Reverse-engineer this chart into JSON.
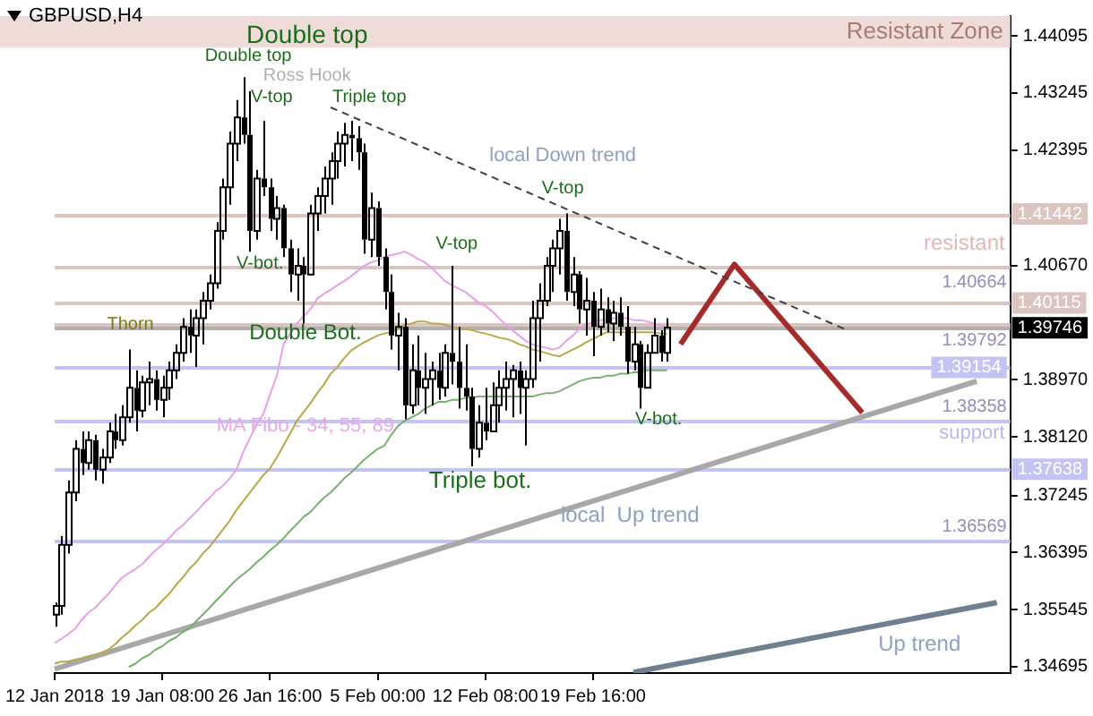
{
  "chart_data": {
    "type": "candlestick",
    "title": "GBPUSD,H4",
    "color": "#000000",
    "categories": [
      "12 Jan 2018",
      null,
      null,
      null,
      null,
      null,
      null,
      null,
      null,
      null,
      null,
      null,
      null,
      null,
      null,
      null,
      "19 Jan 08:00",
      null,
      null,
      null,
      null,
      null,
      null,
      null,
      null,
      null,
      null,
      null,
      null,
      null,
      null,
      null,
      "26 Jan 16:00",
      null,
      null,
      null,
      null,
      null,
      null,
      null,
      null,
      null,
      null,
      null,
      null,
      null,
      null,
      null,
      "5 Feb 00:00",
      null,
      null,
      null,
      null,
      null,
      null,
      null,
      null,
      null,
      null,
      null,
      null,
      null,
      null,
      null,
      "12 Feb 08:00",
      null,
      null,
      null,
      null,
      null,
      null,
      null,
      null,
      null,
      null,
      null,
      null,
      null,
      null,
      null,
      "19 Feb 16:00",
      null,
      null,
      null,
      null,
      null,
      null,
      null,
      null,
      null,
      null,
      null,
      null,
      null,
      null,
      null,
      null,
      null,
      null,
      null,
      null,
      null,
      null,
      null,
      null,
      null,
      null,
      null,
      null,
      null,
      null,
      null,
      null,
      null,
      null,
      null,
      null,
      null,
      null,
      null,
      null,
      null,
      null,
      null,
      null,
      null,
      null,
      null,
      null,
      null,
      null,
      null,
      null,
      null,
      null,
      null,
      null,
      null,
      null,
      null,
      null,
      null,
      null
    ],
    "ohlc": [
      [
        1.3547,
        1.3565,
        1.3529,
        1.356
      ],
      [
        1.356,
        1.3664,
        1.3547,
        1.3651
      ],
      [
        1.3651,
        1.3747,
        1.3638,
        1.3729
      ],
      [
        1.3729,
        1.3807,
        1.3716,
        1.3794
      ],
      [
        1.3794,
        1.382,
        1.3755,
        1.3773
      ],
      [
        1.3773,
        1.382,
        1.3763,
        1.3807
      ],
      [
        1.3807,
        1.3815,
        1.3747,
        1.3763
      ],
      [
        1.3763,
        1.3794,
        1.3742,
        1.3781
      ],
      [
        1.3781,
        1.3833,
        1.3773,
        1.382
      ],
      [
        1.382,
        1.3846,
        1.3794,
        1.3807
      ],
      [
        1.3807,
        1.3859,
        1.3799,
        1.3841
      ],
      [
        1.3841,
        1.3942,
        1.3833,
        1.3885
      ],
      [
        1.3885,
        1.3911,
        1.382,
        1.3851
      ],
      [
        1.3851,
        1.3903,
        1.3841,
        1.3893
      ],
      [
        1.3893,
        1.3924,
        1.3859,
        1.3898
      ],
      [
        1.3898,
        1.3911,
        1.3851,
        1.3867
      ],
      [
        1.3867,
        1.3903,
        1.3841,
        1.3885
      ],
      [
        1.3885,
        1.3924,
        1.3867,
        1.3911
      ],
      [
        1.3911,
        1.395,
        1.3898,
        1.3937
      ],
      [
        1.3937,
        1.3989,
        1.3924,
        1.3976
      ],
      [
        1.3976,
        1.4002,
        1.3937,
        1.3963
      ],
      [
        1.3963,
        1.4002,
        1.3916,
        1.3989
      ],
      [
        1.3989,
        1.4028,
        1.395,
        1.4015
      ],
      [
        1.4015,
        1.4054,
        1.4002,
        1.4041
      ],
      [
        1.4041,
        1.4132,
        1.4033,
        1.4119
      ],
      [
        1.4119,
        1.4197,
        1.4106,
        1.4184
      ],
      [
        1.4184,
        1.4267,
        1.4158,
        1.4249
      ],
      [
        1.4249,
        1.4314,
        1.4223,
        1.4288
      ],
      [
        1.4288,
        1.4348,
        1.4249,
        1.4262
      ],
      [
        1.4262,
        1.4327,
        1.4088,
        1.4119
      ],
      [
        1.4119,
        1.421,
        1.4106,
        1.4197
      ],
      [
        1.4197,
        1.4283,
        1.4171,
        1.4184
      ],
      [
        1.4184,
        1.4197,
        1.4119,
        1.4137
      ],
      [
        1.4137,
        1.4171,
        1.4106,
        1.4153
      ],
      [
        1.4153,
        1.4158,
        1.408,
        1.4093
      ],
      [
        1.4093,
        1.4106,
        1.4028,
        1.4054
      ],
      [
        1.4054,
        1.4093,
        1.4015,
        1.4067
      ],
      [
        1.4067,
        1.408,
        1.3981,
        1.4054
      ],
      [
        1.4054,
        1.4158,
        1.4054,
        1.4145
      ],
      [
        1.4145,
        1.4184,
        1.4119,
        1.4171
      ],
      [
        1.4171,
        1.4215,
        1.4145,
        1.4197
      ],
      [
        1.4197,
        1.4236,
        1.4158,
        1.4223
      ],
      [
        1.4223,
        1.4267,
        1.4197,
        1.4249
      ],
      [
        1.4249,
        1.428,
        1.4215,
        1.4262
      ],
      [
        1.4262,
        1.4283,
        1.4223,
        1.4257
      ],
      [
        1.4257,
        1.4275,
        1.421,
        1.4236
      ],
      [
        1.4236,
        1.4249,
        1.4085,
        1.4106
      ],
      [
        1.4106,
        1.4176,
        1.408,
        1.4153
      ],
      [
        1.4153,
        1.4163,
        1.4067,
        1.408
      ],
      [
        1.408,
        1.4093,
        1.4002,
        1.4028
      ],
      [
        1.4028,
        1.4054,
        1.3942,
        1.3963
      ],
      [
        1.3963,
        1.3997,
        1.3911,
        1.3976
      ],
      [
        1.3976,
        1.3989,
        1.3838,
        1.3859
      ],
      [
        1.3859,
        1.395,
        1.3846,
        1.3911
      ],
      [
        1.3911,
        1.3963,
        1.3859,
        1.3885
      ],
      [
        1.3885,
        1.3937,
        1.3846,
        1.3898
      ],
      [
        1.3898,
        1.3924,
        1.3859,
        1.3911
      ],
      [
        1.3911,
        1.3937,
        1.3867,
        1.3885
      ],
      [
        1.3885,
        1.395,
        1.3872,
        1.3937
      ],
      [
        1.3937,
        1.4067,
        1.389,
        1.3924
      ],
      [
        1.3924,
        1.3976,
        1.3854,
        1.3885
      ],
      [
        1.3885,
        1.395,
        1.3851,
        1.3872
      ],
      [
        1.3872,
        1.3885,
        1.3768,
        1.3794
      ],
      [
        1.3794,
        1.3859,
        1.3781,
        1.3833
      ],
      [
        1.3833,
        1.3885,
        1.3807,
        1.382
      ],
      [
        1.382,
        1.3893,
        1.382,
        1.3859
      ],
      [
        1.3859,
        1.3911,
        1.3833,
        1.3885
      ],
      [
        1.3885,
        1.3924,
        1.3851,
        1.3898
      ],
      [
        1.3898,
        1.3919,
        1.3841,
        1.3911
      ],
      [
        1.3911,
        1.3924,
        1.3846,
        1.3885
      ],
      [
        1.3885,
        1.3911,
        1.3799,
        1.3898
      ],
      [
        1.3898,
        1.4015,
        1.3885,
        1.3989
      ],
      [
        1.3989,
        1.4041,
        1.3924,
        1.4015
      ],
      [
        1.4015,
        1.408,
        1.4007,
        1.4067
      ],
      [
        1.4067,
        1.4106,
        1.4028,
        1.4093
      ],
      [
        1.4093,
        1.4137,
        1.4054,
        1.4119
      ],
      [
        1.4119,
        1.4145,
        1.4015,
        1.4028
      ],
      [
        1.4028,
        1.408,
        1.4007,
        1.4054
      ],
      [
        1.4054,
        1.4059,
        1.3981,
        1.4002
      ],
      [
        1.4002,
        1.4049,
        1.3963,
        1.4015
      ],
      [
        1.4015,
        1.4028,
        1.3932,
        1.3976
      ],
      [
        1.3976,
        1.4033,
        1.3963,
        1.4002
      ],
      [
        1.4002,
        1.402,
        1.3968,
        1.3981
      ],
      [
        1.3981,
        1.4015,
        1.3955,
        1.3997
      ],
      [
        1.3997,
        1.402,
        1.3963,
        1.3976
      ],
      [
        1.3976,
        1.4007,
        1.3906,
        1.3924
      ],
      [
        1.3924,
        1.3976,
        1.3911,
        1.395
      ],
      [
        1.395,
        1.3955,
        1.3854,
        1.3885
      ],
      [
        1.3885,
        1.395,
        1.3885,
        1.3937
      ],
      [
        1.3937,
        1.3989,
        1.3937,
        1.3963
      ],
      [
        1.3963,
        1.3971,
        1.3924,
        1.3937
      ],
      [
        1.3937,
        1.3989,
        1.3924,
        1.3975
      ],
      null,
      null,
      null,
      null,
      null,
      null,
      null,
      null,
      null,
      null,
      null,
      null,
      null,
      null,
      null,
      null,
      null,
      null,
      null,
      null,
      null,
      null,
      null,
      null,
      null,
      null,
      null,
      null,
      null,
      null,
      null,
      null,
      null,
      null,
      null,
      null,
      null,
      null,
      null,
      null,
      null,
      null,
      null,
      null,
      null,
      null,
      null,
      null,
      null,
      null,
      null
    ],
    "series": [
      {
        "type": "line",
        "color": "#e8a0e8",
        "values": [
          1.3505,
          1.3511,
          1.3518,
          1.3526,
          1.3539,
          1.355,
          1.3557,
          1.3568,
          1.3578,
          1.3591,
          1.3602,
          1.3609,
          1.3615,
          1.3622,
          1.3633,
          1.3643,
          1.3651,
          1.3661,
          1.3672,
          1.368,
          1.369,
          1.37,
          1.3711,
          1.3721,
          1.3732,
          1.3739,
          1.375,
          1.3763,
          1.3789,
          1.381,
          1.383,
          1.3846,
          1.3875,
          1.3903,
          1.395,
          1.3966,
          1.3981,
          1.3992,
          1.4002,
          1.4018,
          1.4025,
          1.4031,
          1.4038,
          1.4044,
          1.4051,
          1.4059,
          1.4067,
          1.4072,
          1.4075,
          1.408,
          1.4083,
          1.4085,
          1.4088,
          1.4083,
          1.4077,
          1.4072,
          1.4064,
          1.4054,
          1.4044,
          1.4038,
          1.4033,
          1.4028,
          1.402,
          1.4012,
          1.4007,
          1.3999,
          1.3989,
          1.3979,
          1.3971,
          1.3963,
          1.3955,
          1.395,
          1.3947,
          1.3945,
          1.3942,
          1.3945,
          1.3955,
          1.3963,
          1.3973,
          1.3979,
          1.3984,
          1.3986,
          1.3986,
          1.3989,
          1.3989,
          1.3989,
          1.3986,
          1.3986,
          1.3984,
          1.3981,
          1.3979,
          1.3976,
          null,
          null,
          null,
          null,
          null,
          null,
          null,
          null,
          null,
          null,
          null,
          null,
          null,
          null,
          null,
          null,
          null,
          null,
          null,
          null,
          null,
          null,
          null,
          null,
          null,
          null,
          null,
          null,
          null,
          null,
          null,
          null,
          null,
          null,
          null,
          null,
          null,
          null,
          null,
          null,
          null,
          null,
          null,
          null,
          null,
          null,
          null,
          null,
          null,
          null,
          null
        ]
      },
      {
        "type": "line",
        "color": "#b8a848",
        "values": [
          1.3474,
          1.3477,
          1.3477,
          1.348,
          1.3482,
          1.3485,
          1.3487,
          1.349,
          1.3495,
          1.3503,
          1.3513,
          1.3521,
          1.3531,
          1.3539,
          1.355,
          1.3557,
          1.3568,
          1.3578,
          1.3591,
          1.3602,
          1.3615,
          1.3625,
          1.3638,
          1.3648,
          1.3661,
          1.3674,
          1.3687,
          1.3703,
          1.3716,
          1.3729,
          1.3742,
          1.3755,
          1.3765,
          1.3781,
          1.3799,
          1.3817,
          1.3836,
          1.3849,
          1.3862,
          1.3877,
          1.389,
          1.3906,
          1.3916,
          1.3929,
          1.394,
          1.3947,
          1.3953,
          1.3958,
          1.3963,
          1.3966,
          1.3968,
          1.3973,
          1.3979,
          1.3981,
          1.3984,
          1.3984,
          1.3981,
          1.3981,
          1.3979,
          1.3976,
          1.3973,
          1.3973,
          1.3971,
          1.3968,
          1.3966,
          1.3963,
          1.396,
          1.3958,
          1.3955,
          1.395,
          1.3947,
          1.3942,
          1.394,
          1.3937,
          1.3934,
          1.3932,
          1.3937,
          1.3942,
          1.3947,
          1.3953,
          1.3958,
          1.3963,
          1.3968,
          1.3968,
          1.3968,
          1.3968,
          1.3968,
          1.3968,
          1.3968,
          1.3968,
          1.3966,
          1.3966,
          null,
          null,
          null,
          null,
          null,
          null,
          null,
          null,
          null,
          null,
          null,
          null,
          null,
          null,
          null,
          null,
          null,
          null,
          null,
          null,
          null,
          null,
          null,
          null,
          null,
          null,
          null,
          null,
          null,
          null,
          null,
          null,
          null,
          null,
          null,
          null,
          null,
          null,
          null,
          null,
          null,
          null,
          null,
          null,
          null,
          null,
          null,
          null,
          null,
          null,
          null
        ]
      },
      {
        "type": "line",
        "color": "#78b070",
        "values": [
          null,
          null,
          null,
          null,
          null,
          null,
          null,
          null,
          null,
          null,
          null,
          1.3469,
          1.3474,
          1.3482,
          1.3487,
          1.3495,
          1.35,
          1.3508,
          1.3513,
          1.3521,
          1.3526,
          1.3537,
          1.3547,
          1.3557,
          1.3568,
          1.3578,
          1.3589,
          1.3599,
          1.3607,
          1.3615,
          1.3625,
          1.3633,
          1.3643,
          1.3651,
          1.3661,
          1.3672,
          1.3682,
          1.3693,
          1.37,
          1.3711,
          1.3721,
          1.3729,
          1.3739,
          1.375,
          1.3758,
          1.3768,
          1.3778,
          1.3786,
          1.3794,
          1.3799,
          1.3815,
          1.3828,
          1.3836,
          1.3841,
          1.3846,
          1.3854,
          1.3859,
          1.3864,
          1.3864,
          1.3867,
          1.3867,
          1.387,
          1.387,
          1.3872,
          1.3872,
          1.3872,
          1.3872,
          1.3872,
          1.3872,
          1.3872,
          1.3872,
          1.3872,
          1.3875,
          1.3877,
          1.3877,
          1.388,
          1.3885,
          1.389,
          1.3895,
          1.3898,
          1.39,
          1.39,
          1.3903,
          1.3903,
          1.3906,
          1.3906,
          1.3908,
          1.3908,
          1.3911,
          1.3911,
          1.3911,
          1.3911,
          null,
          null,
          null,
          null,
          null,
          null,
          null,
          null,
          null,
          null,
          null,
          null,
          null,
          null,
          null,
          null,
          null,
          null,
          null,
          null,
          null,
          null,
          null,
          null,
          null,
          null,
          null,
          null,
          null,
          null,
          null,
          null,
          null,
          null,
          null,
          null,
          null,
          null,
          null,
          null,
          null,
          null,
          null,
          null,
          null,
          null,
          null,
          null,
          null,
          null,
          null
        ]
      },
      {
        "type": "line",
        "color": "#708090",
        "values": [
          null,
          null,
          null,
          null,
          null,
          null,
          null,
          null,
          null,
          null,
          null,
          null,
          null,
          null,
          null,
          null,
          null,
          null,
          null,
          null,
          null,
          null,
          null,
          null,
          null,
          null,
          null,
          null,
          null,
          null,
          null,
          null,
          null,
          null,
          null,
          null,
          null,
          null,
          null,
          null,
          null,
          null,
          null,
          null,
          null,
          null,
          null,
          null,
          null,
          null,
          null,
          null,
          null,
          null,
          null,
          null,
          null,
          null,
          null,
          null,
          null,
          null,
          null,
          null,
          null,
          null,
          null,
          null,
          null,
          null,
          null,
          null,
          null,
          null,
          null,
          null,
          null,
          null,
          null,
          null,
          null,
          null,
          null,
          null,
          null,
          null,
          1.3461,
          null,
          null,
          null,
          null,
          null,
          null,
          null,
          null,
          null,
          null,
          null,
          null,
          null,
          null,
          null,
          null,
          null,
          null,
          null,
          null,
          null,
          null,
          null,
          null,
          null,
          null,
          null,
          null,
          null,
          null,
          null,
          null,
          null,
          null,
          null,
          null,
          null,
          null,
          null,
          null,
          null,
          null,
          null,
          null,
          null,
          null,
          null,
          null,
          null,
          null,
          null,
          null,
          null,
          1.3565,
          null,
          null
        ]
      },
      {
        "type": "line",
        "color": "#a8a8a8",
        "values": [
          1.3466,
          null,
          null,
          null,
          null,
          null,
          null,
          null,
          null,
          null,
          null,
          null,
          null,
          null,
          null,
          null,
          null,
          null,
          null,
          null,
          null,
          null,
          null,
          null,
          null,
          null,
          null,
          null,
          null,
          null,
          null,
          null,
          null,
          null,
          null,
          null,
          null,
          null,
          null,
          null,
          null,
          null,
          null,
          null,
          null,
          null,
          null,
          null,
          null,
          null,
          null,
          null,
          null,
          null,
          null,
          null,
          null,
          null,
          null,
          null,
          null,
          null,
          null,
          null,
          null,
          null,
          null,
          null,
          null,
          null,
          null,
          null,
          null,
          null,
          null,
          null,
          null,
          null,
          null,
          null,
          null,
          null,
          null,
          null,
          null,
          null,
          null,
          null,
          null,
          null,
          null,
          null,
          null,
          null,
          null,
          null,
          null,
          null,
          null,
          null,
          null,
          null,
          null,
          null,
          null,
          null,
          null,
          null,
          null,
          null,
          null,
          null,
          null,
          null,
          null,
          null,
          null,
          null,
          null,
          null,
          null,
          null,
          null,
          null,
          null,
          null,
          null,
          null,
          null,
          null,
          null,
          null,
          null,
          null,
          null,
          null,
          null,
          1.3895,
          null,
          null,
          null,
          null,
          null
        ]
      },
      {
        "type": "line",
        "color": "#404040",
        "line_style": "dashed",
        "values": [
          null,
          null,
          null,
          null,
          null,
          null,
          null,
          null,
          null,
          null,
          null,
          null,
          null,
          null,
          null,
          null,
          null,
          null,
          null,
          null,
          null,
          null,
          null,
          null,
          null,
          null,
          null,
          null,
          null,
          null,
          null,
          null,
          null,
          null,
          null,
          null,
          null,
          null,
          null,
          null,
          null,
          1.4303,
          null,
          null,
          null,
          null,
          null,
          null,
          null,
          null,
          null,
          null,
          null,
          null,
          null,
          null,
          null,
          null,
          null,
          null,
          null,
          null,
          null,
          null,
          null,
          null,
          null,
          null,
          null,
          null,
          null,
          null,
          null,
          null,
          null,
          null,
          null,
          null,
          null,
          null,
          null,
          null,
          null,
          null,
          null,
          null,
          null,
          null,
          null,
          null,
          null,
          null,
          null,
          null,
          null,
          null,
          null,
          null,
          null,
          null,
          null,
          null,
          null,
          null,
          null,
          null,
          null,
          null,
          null,
          null,
          null,
          null,
          null,
          null,
          null,
          null,
          null,
          null,
          1.397,
          null,
          null,
          null,
          null,
          null,
          null,
          null,
          null,
          null,
          null,
          null,
          null,
          null,
          null,
          null,
          null,
          null,
          null,
          null,
          null,
          null,
          null,
          null,
          null
        ]
      },
      {
        "type": "line",
        "color": "#a52a2a",
        "values": [
          null,
          null,
          null,
          null,
          null,
          null,
          null,
          null,
          null,
          null,
          null,
          null,
          null,
          null,
          null,
          null,
          null,
          null,
          null,
          null,
          null,
          null,
          null,
          null,
          null,
          null,
          null,
          null,
          null,
          null,
          null,
          null,
          null,
          null,
          null,
          null,
          null,
          null,
          null,
          null,
          null,
          null,
          null,
          null,
          null,
          null,
          null,
          null,
          null,
          null,
          null,
          null,
          null,
          null,
          null,
          null,
          null,
          null,
          null,
          null,
          null,
          null,
          null,
          null,
          null,
          null,
          null,
          null,
          null,
          null,
          null,
          null,
          null,
          null,
          null,
          null,
          null,
          null,
          null,
          null,
          null,
          null,
          null,
          null,
          null,
          null,
          null,
          null,
          null,
          null,
          null,
          null,
          null,
          1.395,
          null,
          null,
          null,
          null,
          null,
          null,
          null,
          1.4069,
          null,
          null,
          null,
          null,
          null,
          null,
          null,
          null,
          null,
          null,
          null,
          null,
          null,
          null,
          null,
          null,
          null,
          null,
          1.3848,
          null,
          null,
          null,
          null,
          null,
          null,
          null,
          null,
          null,
          null,
          null,
          null,
          null,
          null,
          null,
          null,
          null,
          null,
          null,
          null,
          null,
          null
        ]
      }
    ],
    "ylim": [
      1.346,
      1.4439
    ],
    "yticks": [
      1.44095,
      1.43245,
      1.42395,
      {
        "value": 1.4067,
        "label": "1.40670"
      },
      {
        "value": 1.3897,
        "label": "1.38970"
      },
      {
        "value": 1.3812,
        "label": "1.38120"
      },
      1.37245,
      1.36395,
      1.35545,
      1.34695
    ],
    "ref_lines": [
      {
        "axis": "y",
        "value": 1.41442,
        "label": "1.41442",
        "color": "#dcc4c0"
      },
      {
        "axis": "y",
        "value": 1.40664,
        "label": "1.40664",
        "color": "#dcc4c0"
      },
      {
        "axis": "y",
        "value": 1.40115,
        "label": "1.40115",
        "color": "#dcc4c0"
      },
      {
        "axis": "y",
        "value": 1.39792,
        "label": "1.39792",
        "color": "#dcc4c0"
      },
      {
        "axis": "y",
        "value": 1.39746,
        "label": "1.39746",
        "color": "#b0b0b0"
      },
      {
        "axis": "y",
        "value": 1.39154,
        "label": "1.39154",
        "color": "#c4c4f4"
      },
      {
        "axis": "y",
        "value": 1.38358,
        "label": "1.38358",
        "color": "#c4c4f4"
      },
      {
        "axis": "y",
        "value": 1.37638,
        "label": "1.37638",
        "color": "#c4c4f4"
      },
      {
        "axis": "y",
        "value": 1.36569,
        "label": "1.36569",
        "color": "#c4c4f4"
      }
    ],
    "bands": [
      {
        "axis": "y",
        "from": 1.4392,
        "to": 1.4439,
        "label": "Resistant Zone",
        "color": "#eedcd8"
      }
    ],
    "annotations": [
      "Double top",
      "Double top",
      "Ross Hook",
      "V-top",
      "Triple top",
      "V-bot.",
      "Thorn",
      "Double Bot.",
      "MA Fibo - 34; 55; 89",
      "Triple bot.",
      "V-top",
      "local Down trend",
      "V-top",
      "V-bot.",
      "local  Up trend",
      "Up trend",
      "resistant",
      "support"
    ]
  }
}
